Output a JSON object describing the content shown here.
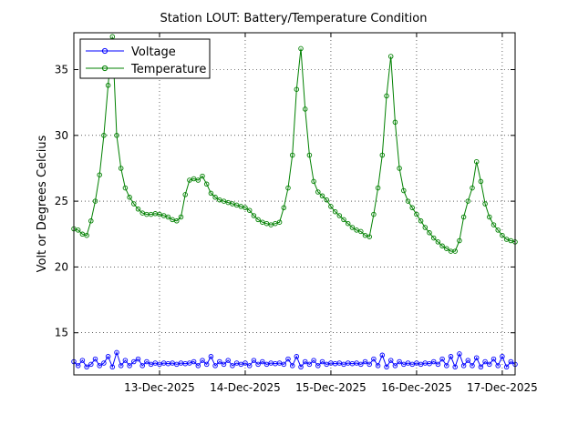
{
  "chart_data": {
    "type": "line",
    "title": "Station LOUT: Battery/Temperature Condition",
    "xlabel": "",
    "ylabel": "Volt or Degrees Celcius",
    "xlim": [
      12.0,
      17.15
    ],
    "ylim": [
      11.8,
      37.8
    ],
    "grid": true,
    "legend_position": "top-left",
    "x_unit": "day of December 2025",
    "xticks": [
      {
        "value": 13,
        "label": "13-Dec-2025"
      },
      {
        "value": 14,
        "label": "14-Dec-2025"
      },
      {
        "value": 15,
        "label": "15-Dec-2025"
      },
      {
        "value": 16,
        "label": "16-Dec-2025"
      },
      {
        "value": 17,
        "label": "17-Dec-2025"
      }
    ],
    "yticks": [
      {
        "value": 15,
        "label": "15"
      },
      {
        "value": 20,
        "label": "20"
      },
      {
        "value": 25,
        "label": "25"
      },
      {
        "value": 30,
        "label": "30"
      },
      {
        "value": 35,
        "label": "35"
      }
    ],
    "series": [
      {
        "name": "Voltage",
        "color": "#0000ff",
        "marker": "circle",
        "points": [
          [
            12.0,
            12.8
          ],
          [
            12.05,
            12.5
          ],
          [
            12.1,
            12.9
          ],
          [
            12.15,
            12.4
          ],
          [
            12.2,
            12.6
          ],
          [
            12.25,
            13.0
          ],
          [
            12.3,
            12.5
          ],
          [
            12.35,
            12.7
          ],
          [
            12.4,
            13.2
          ],
          [
            12.45,
            12.4
          ],
          [
            12.5,
            13.5
          ],
          [
            12.55,
            12.5
          ],
          [
            12.6,
            12.9
          ],
          [
            12.65,
            12.5
          ],
          [
            12.7,
            12.8
          ],
          [
            12.75,
            13.0
          ],
          [
            12.8,
            12.5
          ],
          [
            12.85,
            12.8
          ],
          [
            12.9,
            12.6
          ],
          [
            12.95,
            12.7
          ],
          [
            13.0,
            12.6
          ],
          [
            13.05,
            12.7
          ],
          [
            13.1,
            12.65
          ],
          [
            13.15,
            12.7
          ],
          [
            13.2,
            12.6
          ],
          [
            13.25,
            12.7
          ],
          [
            13.3,
            12.65
          ],
          [
            13.35,
            12.7
          ],
          [
            13.4,
            12.8
          ],
          [
            13.45,
            12.5
          ],
          [
            13.5,
            12.9
          ],
          [
            13.55,
            12.6
          ],
          [
            13.6,
            13.2
          ],
          [
            13.65,
            12.5
          ],
          [
            13.7,
            12.8
          ],
          [
            13.75,
            12.6
          ],
          [
            13.8,
            12.9
          ],
          [
            13.85,
            12.5
          ],
          [
            13.9,
            12.7
          ],
          [
            13.95,
            12.6
          ],
          [
            14.0,
            12.7
          ],
          [
            14.05,
            12.5
          ],
          [
            14.1,
            12.9
          ],
          [
            14.15,
            12.6
          ],
          [
            14.2,
            12.8
          ],
          [
            14.25,
            12.6
          ],
          [
            14.3,
            12.7
          ],
          [
            14.35,
            12.65
          ],
          [
            14.4,
            12.7
          ],
          [
            14.45,
            12.6
          ],
          [
            14.5,
            13.0
          ],
          [
            14.55,
            12.5
          ],
          [
            14.6,
            13.2
          ],
          [
            14.65,
            12.4
          ],
          [
            14.7,
            12.8
          ],
          [
            14.75,
            12.6
          ],
          [
            14.8,
            12.9
          ],
          [
            14.85,
            12.5
          ],
          [
            14.9,
            12.8
          ],
          [
            14.95,
            12.6
          ],
          [
            15.0,
            12.7
          ],
          [
            15.05,
            12.65
          ],
          [
            15.1,
            12.7
          ],
          [
            15.15,
            12.6
          ],
          [
            15.2,
            12.7
          ],
          [
            15.25,
            12.65
          ],
          [
            15.3,
            12.7
          ],
          [
            15.35,
            12.6
          ],
          [
            15.4,
            12.8
          ],
          [
            15.45,
            12.6
          ],
          [
            15.5,
            13.0
          ],
          [
            15.55,
            12.5
          ],
          [
            15.6,
            13.3
          ],
          [
            15.65,
            12.4
          ],
          [
            15.7,
            12.9
          ],
          [
            15.75,
            12.5
          ],
          [
            15.8,
            12.8
          ],
          [
            15.85,
            12.6
          ],
          [
            15.9,
            12.7
          ],
          [
            15.95,
            12.6
          ],
          [
            16.0,
            12.7
          ],
          [
            16.05,
            12.6
          ],
          [
            16.1,
            12.7
          ],
          [
            16.15,
            12.65
          ],
          [
            16.2,
            12.8
          ],
          [
            16.25,
            12.6
          ],
          [
            16.3,
            13.0
          ],
          [
            16.35,
            12.5
          ],
          [
            16.4,
            13.2
          ],
          [
            16.45,
            12.4
          ],
          [
            16.5,
            13.4
          ],
          [
            16.55,
            12.5
          ],
          [
            16.6,
            12.9
          ],
          [
            16.65,
            12.5
          ],
          [
            16.7,
            13.1
          ],
          [
            16.75,
            12.4
          ],
          [
            16.8,
            12.8
          ],
          [
            16.85,
            12.6
          ],
          [
            16.9,
            13.0
          ],
          [
            16.95,
            12.5
          ],
          [
            17.0,
            13.2
          ],
          [
            17.05,
            12.4
          ],
          [
            17.1,
            12.8
          ],
          [
            17.15,
            12.6
          ]
        ]
      },
      {
        "name": "Temperature",
        "color": "#008000",
        "marker": "circle",
        "points": [
          [
            12.0,
            22.9
          ],
          [
            12.05,
            22.8
          ],
          [
            12.1,
            22.5
          ],
          [
            12.15,
            22.4
          ],
          [
            12.2,
            23.5
          ],
          [
            12.25,
            25.0
          ],
          [
            12.3,
            27.0
          ],
          [
            12.35,
            30.0
          ],
          [
            12.4,
            33.8
          ],
          [
            12.45,
            37.5
          ],
          [
            12.5,
            30.0
          ],
          [
            12.55,
            27.5
          ],
          [
            12.6,
            26.0
          ],
          [
            12.65,
            25.3
          ],
          [
            12.7,
            24.8
          ],
          [
            12.75,
            24.4
          ],
          [
            12.8,
            24.1
          ],
          [
            12.85,
            24.0
          ],
          [
            12.9,
            24.0
          ],
          [
            12.95,
            24.05
          ],
          [
            13.0,
            24.0
          ],
          [
            13.05,
            23.9
          ],
          [
            13.1,
            23.8
          ],
          [
            13.15,
            23.6
          ],
          [
            13.2,
            23.5
          ],
          [
            13.25,
            23.8
          ],
          [
            13.3,
            25.5
          ],
          [
            13.35,
            26.6
          ],
          [
            13.4,
            26.7
          ],
          [
            13.45,
            26.6
          ],
          [
            13.5,
            26.9
          ],
          [
            13.55,
            26.3
          ],
          [
            13.6,
            25.6
          ],
          [
            13.65,
            25.3
          ],
          [
            13.7,
            25.1
          ],
          [
            13.75,
            25.0
          ],
          [
            13.8,
            24.9
          ],
          [
            13.85,
            24.8
          ],
          [
            13.9,
            24.7
          ],
          [
            13.95,
            24.6
          ],
          [
            14.0,
            24.5
          ],
          [
            14.05,
            24.3
          ],
          [
            14.1,
            23.9
          ],
          [
            14.15,
            23.6
          ],
          [
            14.2,
            23.4
          ],
          [
            14.25,
            23.3
          ],
          [
            14.3,
            23.2
          ],
          [
            14.35,
            23.3
          ],
          [
            14.4,
            23.4
          ],
          [
            14.45,
            24.5
          ],
          [
            14.5,
            26.0
          ],
          [
            14.55,
            28.5
          ],
          [
            14.6,
            33.5
          ],
          [
            14.65,
            36.6
          ],
          [
            14.7,
            32.0
          ],
          [
            14.75,
            28.5
          ],
          [
            14.8,
            26.5
          ],
          [
            14.85,
            25.7
          ],
          [
            14.9,
            25.4
          ],
          [
            14.95,
            25.1
          ],
          [
            15.0,
            24.6
          ],
          [
            15.05,
            24.2
          ],
          [
            15.1,
            23.9
          ],
          [
            15.15,
            23.6
          ],
          [
            15.2,
            23.3
          ],
          [
            15.25,
            23.0
          ],
          [
            15.3,
            22.8
          ],
          [
            15.35,
            22.7
          ],
          [
            15.4,
            22.4
          ],
          [
            15.45,
            22.3
          ],
          [
            15.5,
            24.0
          ],
          [
            15.55,
            26.0
          ],
          [
            15.6,
            28.5
          ],
          [
            15.65,
            33.0
          ],
          [
            15.7,
            36.0
          ],
          [
            15.75,
            31.0
          ],
          [
            15.8,
            27.5
          ],
          [
            15.85,
            25.8
          ],
          [
            15.9,
            25.0
          ],
          [
            15.95,
            24.5
          ],
          [
            16.0,
            24.0
          ],
          [
            16.05,
            23.5
          ],
          [
            16.1,
            23.0
          ],
          [
            16.15,
            22.6
          ],
          [
            16.2,
            22.2
          ],
          [
            16.25,
            21.9
          ],
          [
            16.3,
            21.6
          ],
          [
            16.35,
            21.4
          ],
          [
            16.4,
            21.2
          ],
          [
            16.45,
            21.2
          ],
          [
            16.5,
            22.0
          ],
          [
            16.55,
            23.8
          ],
          [
            16.6,
            25.0
          ],
          [
            16.65,
            26.0
          ],
          [
            16.7,
            28.0
          ],
          [
            16.75,
            26.5
          ],
          [
            16.8,
            24.8
          ],
          [
            16.85,
            23.8
          ],
          [
            16.9,
            23.2
          ],
          [
            16.95,
            22.8
          ],
          [
            17.0,
            22.4
          ],
          [
            17.05,
            22.1
          ],
          [
            17.1,
            22.0
          ],
          [
            17.15,
            21.9
          ]
        ]
      }
    ]
  }
}
